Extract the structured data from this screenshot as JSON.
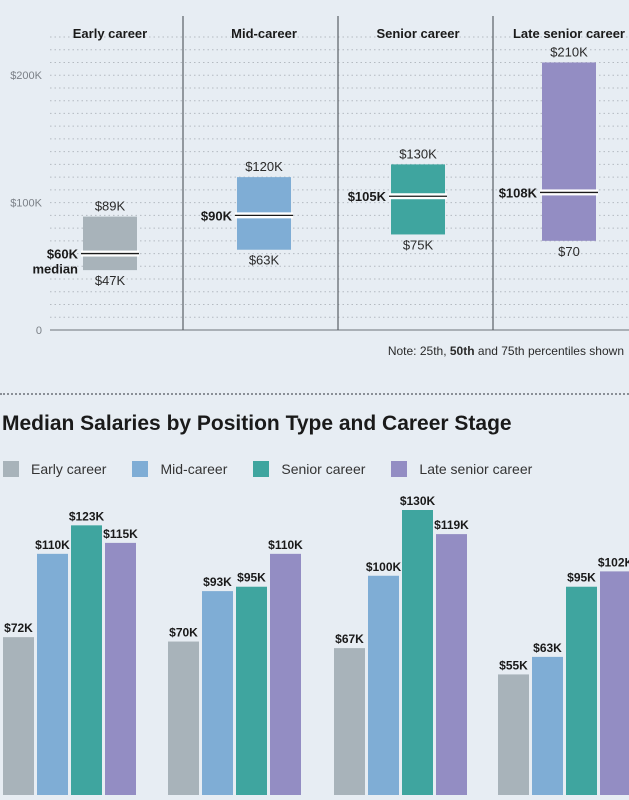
{
  "colors": {
    "early": "#a8b3ba",
    "mid": "#7fadd5",
    "senior": "#3fa59f",
    "late": "#938dc3"
  },
  "range_chart": {
    "type": "floating-bar",
    "y_ticks": [
      "$200K",
      "$100K",
      "0"
    ],
    "ylim": [
      0,
      230
    ],
    "note": {
      "prefix": "Note: 25th, ",
      "bold": "50th",
      "suffix": " and 75th percentiles shown"
    },
    "stages": [
      {
        "name": "Early career",
        "p25": 47,
        "median": 60,
        "p75": 89,
        "p25_label": "$47K",
        "median_label": "$60K",
        "median_caption": "median",
        "p75_label": "$89K"
      },
      {
        "name": "Mid-career",
        "p25": 63,
        "median": 90,
        "p75": 120,
        "p25_label": "$63K",
        "median_label": "$90K",
        "median_caption": "",
        "p75_label": "$120K"
      },
      {
        "name": "Senior career",
        "p25": 75,
        "median": 105,
        "p75": 130,
        "p25_label": "$75K",
        "median_label": "$105K",
        "median_caption": "",
        "p75_label": "$130K"
      },
      {
        "name": "Late senior career",
        "p25": 70,
        "median": 108,
        "p75": 210,
        "p25_label": "$70",
        "median_label": "$108K",
        "median_caption": "",
        "p75_label": "$210K"
      }
    ]
  },
  "chart_data": {
    "type": "bar",
    "title": "Median Salaries by Position Type and Career Stage",
    "series": [
      {
        "name": "Early career",
        "color": "#a8b3ba",
        "values": [
          72,
          70,
          67,
          55
        ],
        "labels": [
          "$72K",
          "$70K",
          "$67K",
          "$55K"
        ]
      },
      {
        "name": "Mid-career",
        "color": "#7fadd5",
        "values": [
          110,
          93,
          100,
          63
        ],
        "labels": [
          "$110K",
          "$93K",
          "$100K",
          "$63K"
        ]
      },
      {
        "name": "Senior career",
        "color": "#3fa59f",
        "values": [
          123,
          95,
          130,
          95
        ],
        "labels": [
          "$123K",
          "$95K",
          "$130K",
          "$95K"
        ]
      },
      {
        "name": "Late senior career",
        "color": "#938dc3",
        "values": [
          115,
          110,
          119,
          102
        ],
        "labels": [
          "$115K",
          "$110K",
          "$119K",
          "$102K"
        ]
      }
    ],
    "categories": [
      "",
      "",
      "",
      ""
    ]
  }
}
